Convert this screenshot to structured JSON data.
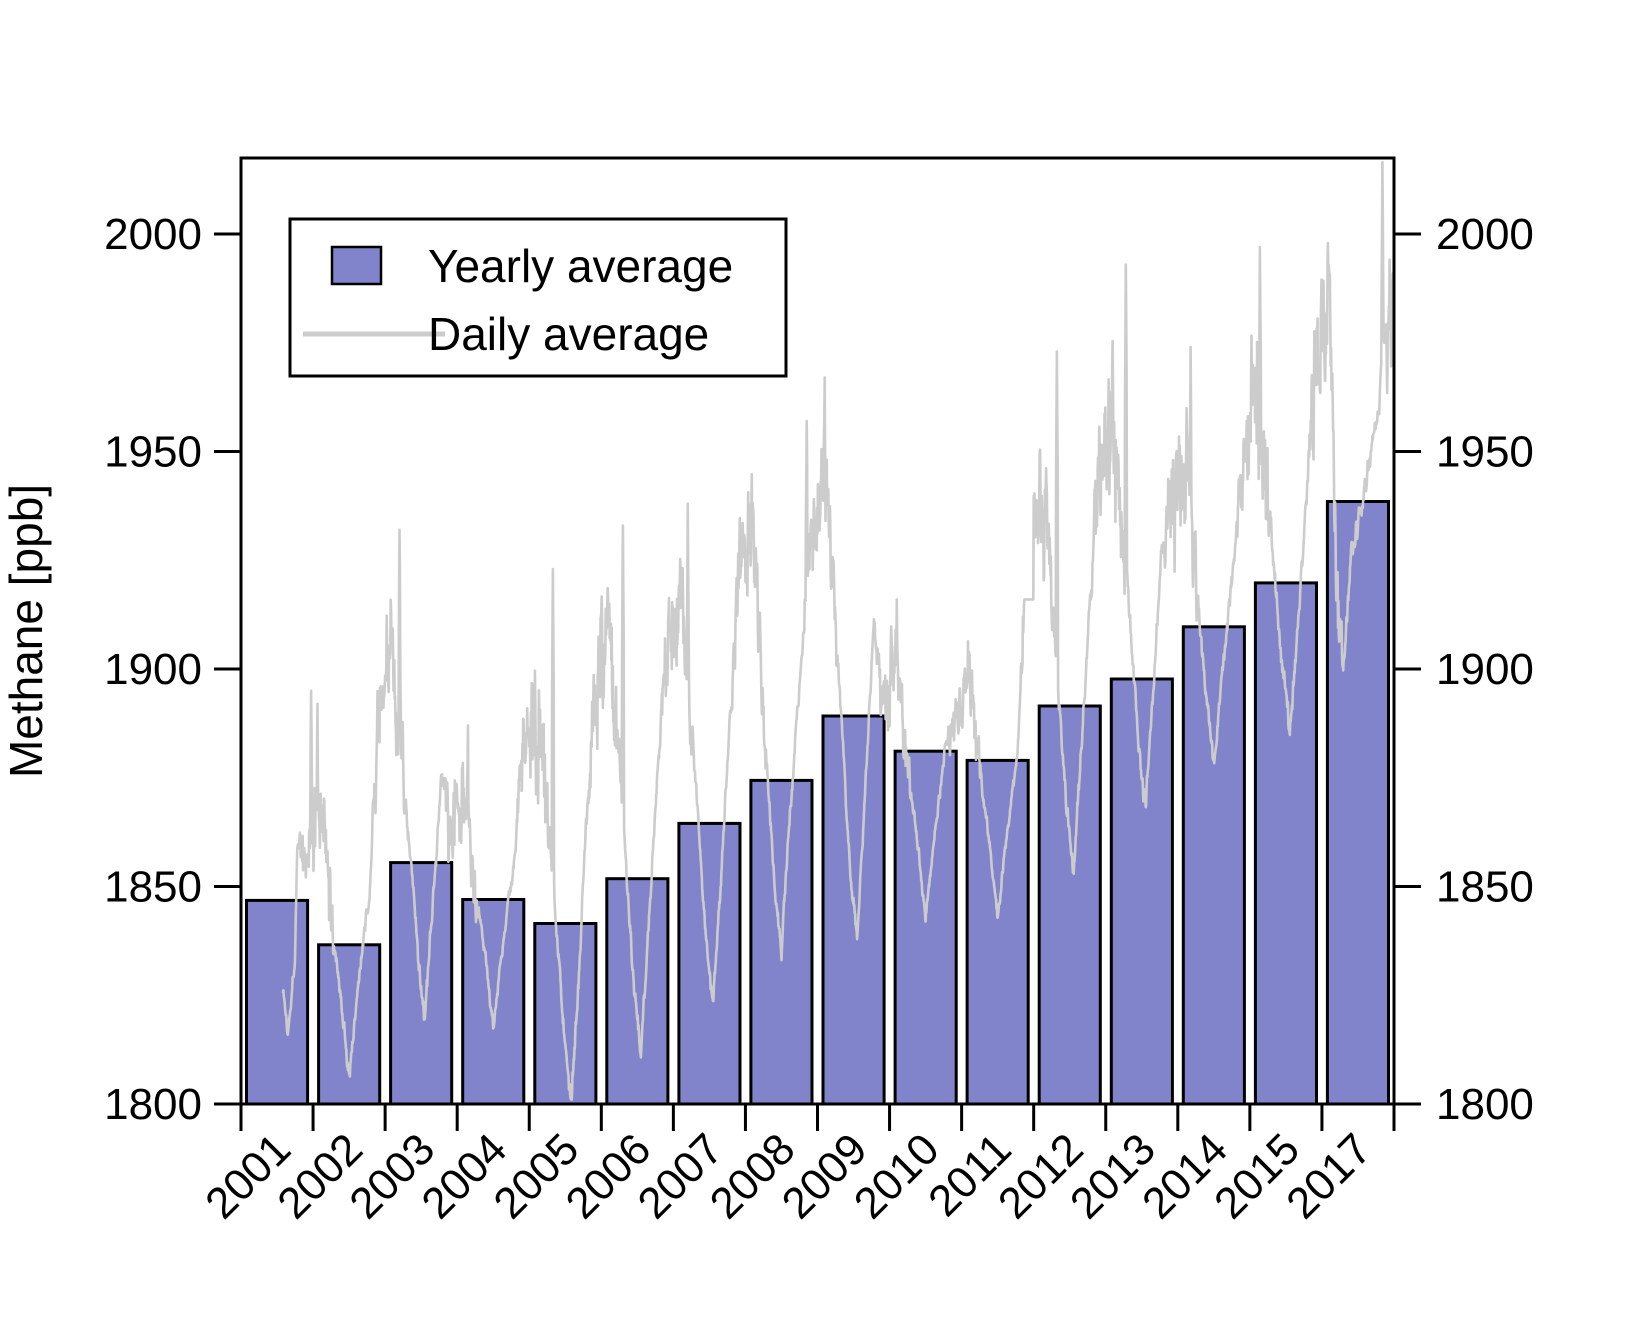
{
  "chart_data": {
    "type": "bar",
    "title": "",
    "ylabel": "Methane [ppb]",
    "xlabel": "",
    "ylim": [
      1800,
      2017
    ],
    "y_ticks": [
      2000,
      1950,
      1900,
      1850,
      1800
    ],
    "y_tick_labels": [
      "2000",
      "1950",
      "1900",
      "1850",
      "1800"
    ],
    "y_axis_sides": [
      "left",
      "right"
    ],
    "grid": false,
    "categories": [
      "2001",
      "2002",
      "2003",
      "2004",
      "2005",
      "2006",
      "2007",
      "2008",
      "2009",
      "2010",
      "2011",
      "2012",
      "2013",
      "2014",
      "2015",
      "2017"
    ],
    "legend": {
      "position": "top-left",
      "items": [
        {
          "label": "Yearly average",
          "swatch": "bar"
        },
        {
          "label": "Daily average",
          "swatch": "line"
        }
      ]
    },
    "series": [
      {
        "name": "Yearly average",
        "type": "bar",
        "values": [
          1846.8,
          1836.6,
          1855.5,
          1847.0,
          1841.5,
          1851.8,
          1864.5,
          1874.4,
          1889.2,
          1881.1,
          1879.0,
          1891.5,
          1897.7,
          1909.7,
          1919.8,
          1938.5
        ]
      },
      {
        "name": "Daily average",
        "type": "line",
        "description": "Noisy daily methane values with seasonal cycle: broad spiky winter maxima and a sharp V-shaped summer minimum each year; record begins mid-2001; year 2016 absent.",
        "yearly_profile": [
          {
            "year": 2001,
            "winter_high": 1880,
            "summer_min": 1816,
            "spike_max": 1895,
            "spike_pos": 0.97,
            "dip_pos": 0.65,
            "start": 0.58
          },
          {
            "year": 2002,
            "winter_high": 1868,
            "summer_min": 1806,
            "spike_max": 1892,
            "spike_pos": 0.06,
            "dip_pos": 0.5
          },
          {
            "year": 2003,
            "winter_high": 1903,
            "summer_min": 1819,
            "spike_max": 1932,
            "spike_pos": 0.2,
            "dip_pos": 0.55
          },
          {
            "year": 2004,
            "winter_high": 1872,
            "summer_min": 1817,
            "spike_max": 1887,
            "spike_pos": 0.15,
            "dip_pos": 0.5
          },
          {
            "year": 2005,
            "winter_high": 1892,
            "summer_min": 1801,
            "spike_max": 1923,
            "spike_pos": 0.33,
            "dip_pos": 0.58
          },
          {
            "year": 2006,
            "winter_high": 1908,
            "summer_min": 1812,
            "spike_max": 1933,
            "spike_pos": 0.3,
            "dip_pos": 0.55
          },
          {
            "year": 2007,
            "winter_high": 1918,
            "summer_min": 1822,
            "spike_max": 1938,
            "spike_pos": 0.2,
            "dip_pos": 0.55
          },
          {
            "year": 2008,
            "winter_high": 1935,
            "summer_min": 1835,
            "spike_max": 1957,
            "spike_pos": 0.85,
            "dip_pos": 0.5
          },
          {
            "year": 2009,
            "winter_high": 1945,
            "summer_min": 1838,
            "spike_max": 1967,
            "spike_pos": 0.1,
            "dip_pos": 0.55
          },
          {
            "year": 2010,
            "winter_high": 1902,
            "summer_min": 1842,
            "spike_max": 1916,
            "spike_pos": 0.1,
            "dip_pos": 0.5
          },
          {
            "year": 2011,
            "winter_high": 1900,
            "summer_min": 1842,
            "spike_max": 1912,
            "spike_pos": 0.85,
            "dip_pos": 0.5
          },
          {
            "year": 2012,
            "winter_high": 1945,
            "summer_min": 1853,
            "spike_max": 1973,
            "spike_pos": 0.32,
            "dip_pos": 0.55
          },
          {
            "year": 2013,
            "winter_high": 1958,
            "summer_min": 1868,
            "spike_max": 1993,
            "spike_pos": 0.28,
            "dip_pos": 0.55
          },
          {
            "year": 2014,
            "winter_high": 1948,
            "summer_min": 1877,
            "spike_max": 1974,
            "spike_pos": 0.18,
            "dip_pos": 0.5
          },
          {
            "year": 2015,
            "winter_high": 1962,
            "summer_min": 1885,
            "spike_max": 1997,
            "spike_pos": 0.14,
            "dip_pos": 0.55
          },
          {
            "year": 2017,
            "winter_high": 1985,
            "summer_min": 1901,
            "spike_max": 2016.5,
            "spike_pos": 0.84,
            "dip_pos": 0.3
          }
        ]
      }
    ]
  },
  "colors": {
    "background": "#ffffff",
    "bar_fill": "#8184CB",
    "bar_border": "#000000",
    "daily_line": "#CCCCCC",
    "axis": "#000000",
    "text": "#000000",
    "legend_background": "#ffffff"
  }
}
